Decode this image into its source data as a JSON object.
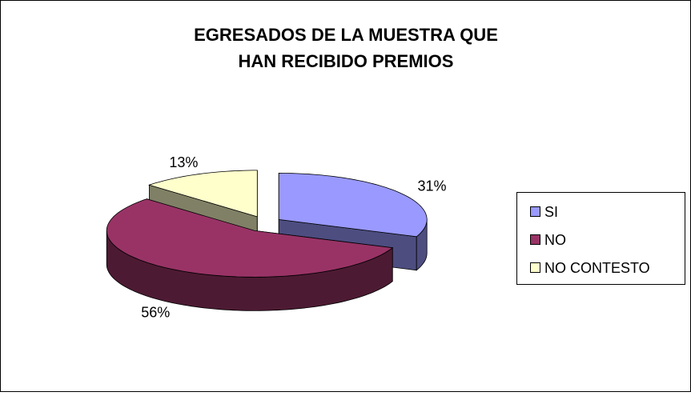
{
  "chart_data": {
    "type": "pie",
    "title": [
      "EGRESADOS DE LA MUESTRA QUE",
      "HAN RECIBIDO PREMIOS"
    ],
    "categories": [
      "SI",
      "NO",
      "NO CONTESTO"
    ],
    "values": [
      31,
      56,
      13
    ],
    "value_labels": [
      "31%",
      "56%",
      "13%"
    ],
    "colors": [
      "#9999ff",
      "#993366",
      "#ffffcc"
    ],
    "legend": "right"
  }
}
